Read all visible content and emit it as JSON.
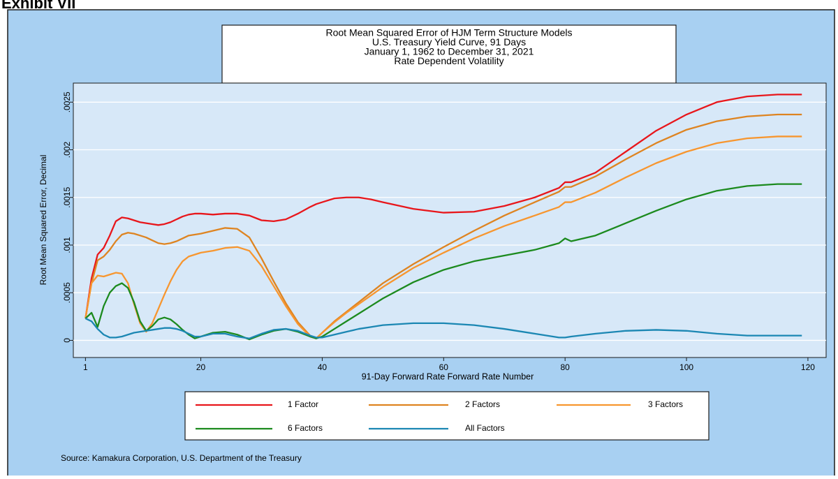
{
  "exhibit": "Exhibit VII",
  "chart_data": {
    "type": "line",
    "title_lines": [
      "Root Mean Squared Error of HJM Term Structure Models",
      "U.S. Treasury Yield Curve, 91 Days",
      "January 1, 1962 to December 31, 2021",
      "Rate Dependent Volatility"
    ],
    "x_label": "91-Day Forward Rate Forward Rate Number",
    "y_label": "Root Mean Squared Error, Decimal",
    "source": "Source: Kamakura Corporation, U.S. Department of the Treasury",
    "grid": true,
    "xlim": [
      -1,
      123
    ],
    "ylim": [
      -0.00018,
      0.0027
    ],
    "xticks": [
      1,
      20,
      40,
      60,
      80,
      100,
      120
    ],
    "yticks": [
      0,
      {
        "value": 0.0005,
        "label": ".0005"
      },
      {
        "value": 0.001,
        "label": ".001"
      },
      {
        "value": 0.0015,
        "label": ".0015"
      },
      {
        "value": 0.002,
        "label": ".002"
      },
      {
        "value": 0.0025,
        "label": ".0025"
      }
    ],
    "x": [
      1,
      2,
      3,
      4,
      5,
      6,
      7,
      8,
      9,
      10,
      11,
      12,
      13,
      14,
      15,
      16,
      17,
      18,
      19,
      20,
      22,
      24,
      26,
      28,
      30,
      32,
      34,
      36,
      38,
      39,
      40,
      42,
      44,
      46,
      48,
      50,
      55,
      60,
      65,
      70,
      75,
      79,
      80,
      81,
      85,
      90,
      95,
      100,
      105,
      110,
      115,
      119
    ],
    "series": [
      {
        "name": "1 Factor",
        "color": "#e8161b",
        "values": [
          0.00023,
          0.00065,
          0.0009,
          0.00097,
          0.0011,
          0.00125,
          0.00129,
          0.00128,
          0.00126,
          0.00124,
          0.00123,
          0.00122,
          0.00121,
          0.00122,
          0.00124,
          0.00127,
          0.0013,
          0.00132,
          0.00133,
          0.00133,
          0.00132,
          0.00133,
          0.00133,
          0.00131,
          0.00126,
          0.00125,
          0.00127,
          0.00133,
          0.0014,
          0.00143,
          0.00145,
          0.00149,
          0.0015,
          0.0015,
          0.00148,
          0.00145,
          0.00138,
          0.00134,
          0.00135,
          0.00141,
          0.0015,
          0.0016,
          0.00166,
          0.00166,
          0.00176,
          0.00198,
          0.0022,
          0.00237,
          0.0025,
          0.00256,
          0.00258,
          0.00258
        ]
      },
      {
        "name": "2 Factors",
        "color": "#de8421",
        "values": [
          0.00023,
          0.0006,
          0.00084,
          0.00088,
          0.00095,
          0.00104,
          0.00111,
          0.00113,
          0.00112,
          0.0011,
          0.00108,
          0.00105,
          0.00102,
          0.00101,
          0.00102,
          0.00104,
          0.00107,
          0.0011,
          0.00111,
          0.00112,
          0.00115,
          0.00118,
          0.00117,
          0.00108,
          0.00086,
          0.00062,
          0.00039,
          0.00019,
          5e-05,
          2e-05,
          8e-05,
          0.0002,
          0.0003,
          0.0004,
          0.0005,
          0.0006,
          0.0008,
          0.00098,
          0.00115,
          0.00131,
          0.00145,
          0.00156,
          0.00161,
          0.00161,
          0.00172,
          0.0019,
          0.00207,
          0.00221,
          0.0023,
          0.00235,
          0.00237,
          0.00237
        ]
      },
      {
        "name": "3 Factors",
        "color": "#f7962f",
        "values": [
          0.00023,
          0.0006,
          0.00068,
          0.00067,
          0.00069,
          0.00071,
          0.0007,
          0.0006,
          0.00038,
          0.00018,
          9e-05,
          0.00018,
          0.00033,
          0.00048,
          0.00062,
          0.00074,
          0.00083,
          0.00088,
          0.0009,
          0.00092,
          0.00094,
          0.00097,
          0.00098,
          0.00094,
          0.00078,
          0.00057,
          0.00036,
          0.00017,
          4e-05,
          2e-05,
          8e-05,
          0.00019,
          0.00029,
          0.00038,
          0.00047,
          0.00056,
          0.00076,
          0.00092,
          0.00107,
          0.0012,
          0.00131,
          0.0014,
          0.00145,
          0.00145,
          0.00155,
          0.00171,
          0.00186,
          0.00198,
          0.00207,
          0.00212,
          0.00214,
          0.00214
        ]
      },
      {
        "name": "6 Factors",
        "color": "#1c8a1e",
        "values": [
          0.00023,
          0.00029,
          0.00014,
          0.00036,
          0.0005,
          0.00057,
          0.0006,
          0.00055,
          0.0004,
          0.0002,
          0.0001,
          0.00015,
          0.00022,
          0.00024,
          0.00022,
          0.00017,
          0.00011,
          6e-05,
          2e-05,
          4e-05,
          8e-05,
          9e-05,
          6e-05,
          1e-05,
          6e-05,
          0.0001,
          0.00012,
          9e-05,
          4e-05,
          2e-05,
          4e-05,
          0.00012,
          0.0002,
          0.00028,
          0.00036,
          0.00044,
          0.00061,
          0.00074,
          0.00083,
          0.00089,
          0.00095,
          0.00102,
          0.00107,
          0.00104,
          0.0011,
          0.00123,
          0.00136,
          0.00148,
          0.00157,
          0.00162,
          0.00164,
          0.00164
        ]
      },
      {
        "name": "All Factors",
        "color": "#1b87b3",
        "values": [
          0.00023,
          0.0002,
          0.00012,
          6e-05,
          3e-05,
          3e-05,
          4e-05,
          6e-05,
          8e-05,
          9e-05,
          0.0001,
          0.00011,
          0.00012,
          0.00013,
          0.00013,
          0.00012,
          0.0001,
          7e-05,
          4e-05,
          4e-05,
          7e-05,
          7e-05,
          4e-05,
          2e-05,
          7e-05,
          0.00011,
          0.00012,
          0.0001,
          5e-05,
          3e-05,
          3e-05,
          6e-05,
          9e-05,
          0.00012,
          0.00014,
          0.00016,
          0.00018,
          0.00018,
          0.00016,
          0.00012,
          7e-05,
          3e-05,
          3e-05,
          4e-05,
          7e-05,
          0.0001,
          0.00011,
          0.0001,
          7e-05,
          5e-05,
          5e-05,
          5e-05
        ]
      }
    ]
  }
}
